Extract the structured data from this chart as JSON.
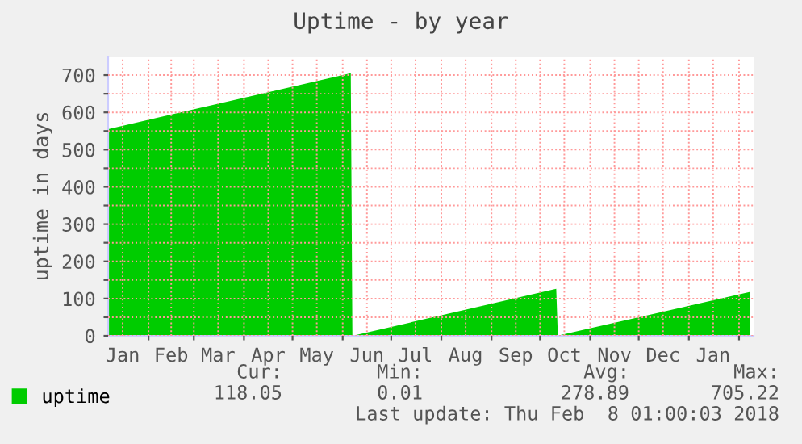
{
  "chart_data": {
    "type": "area",
    "title": "Uptime - by year",
    "ylabel": "uptime in days",
    "x": [
      "2017-01-07",
      "2017-06-06",
      "2017-06-07",
      "2017-10-11",
      "2017-10-12",
      "2018-02-08"
    ],
    "series": [
      {
        "name": "uptime",
        "color": "#00cc00",
        "values": [
          555,
          705.22,
          0.01,
          126,
          0.5,
          118.05
        ]
      }
    ],
    "xlim": [
      "2017-01-07",
      "2018-02-10"
    ],
    "xticks": [
      {
        "value": "2017-01-16",
        "label": "Jan"
      },
      {
        "value": "2017-02-01",
        "label": null
      },
      {
        "value": "2017-02-15",
        "label": "Feb"
      },
      {
        "value": "2017-03-01",
        "label": null
      },
      {
        "value": "2017-03-16",
        "label": "Mar"
      },
      {
        "value": "2017-04-01",
        "label": null
      },
      {
        "value": "2017-04-16",
        "label": "Apr"
      },
      {
        "value": "2017-05-01",
        "label": null
      },
      {
        "value": "2017-05-16",
        "label": "May"
      },
      {
        "value": "2017-06-01",
        "label": null
      },
      {
        "value": "2017-06-16",
        "label": "Jun"
      },
      {
        "value": "2017-07-01",
        "label": null
      },
      {
        "value": "2017-07-16",
        "label": "Jul"
      },
      {
        "value": "2017-08-01",
        "label": null
      },
      {
        "value": "2017-08-16",
        "label": "Aug"
      },
      {
        "value": "2017-09-01",
        "label": null
      },
      {
        "value": "2017-09-16",
        "label": "Sep"
      },
      {
        "value": "2017-10-01",
        "label": null
      },
      {
        "value": "2017-10-16",
        "label": "Oct"
      },
      {
        "value": "2017-11-01",
        "label": null
      },
      {
        "value": "2017-11-16",
        "label": "Nov"
      },
      {
        "value": "2017-12-01",
        "label": null
      },
      {
        "value": "2017-12-16",
        "label": "Dec"
      },
      {
        "value": "2018-01-01",
        "label": null
      },
      {
        "value": "2018-01-16",
        "label": "Jan"
      },
      {
        "value": "2018-02-01",
        "label": null
      }
    ],
    "ylim": [
      0,
      750
    ],
    "yticks": [
      0,
      {
        "value": 50,
        "label": null
      },
      100,
      {
        "value": 150,
        "label": null
      },
      200,
      {
        "value": 250,
        "label": null
      },
      300,
      {
        "value": 350,
        "label": null
      },
      400,
      {
        "value": 450,
        "label": null
      },
      500,
      {
        "value": 550,
        "label": null
      },
      600,
      {
        "value": 650,
        "label": null
      },
      700
    ],
    "grid": true,
    "legend": "bottom",
    "annotations": [
      "Cur:",
      "118.05",
      "Min:",
      "0.01",
      "Avg:",
      "278.89",
      "Max:",
      "705.22",
      "Last update: Thu Feb  8 01:00:03 2018"
    ]
  }
}
